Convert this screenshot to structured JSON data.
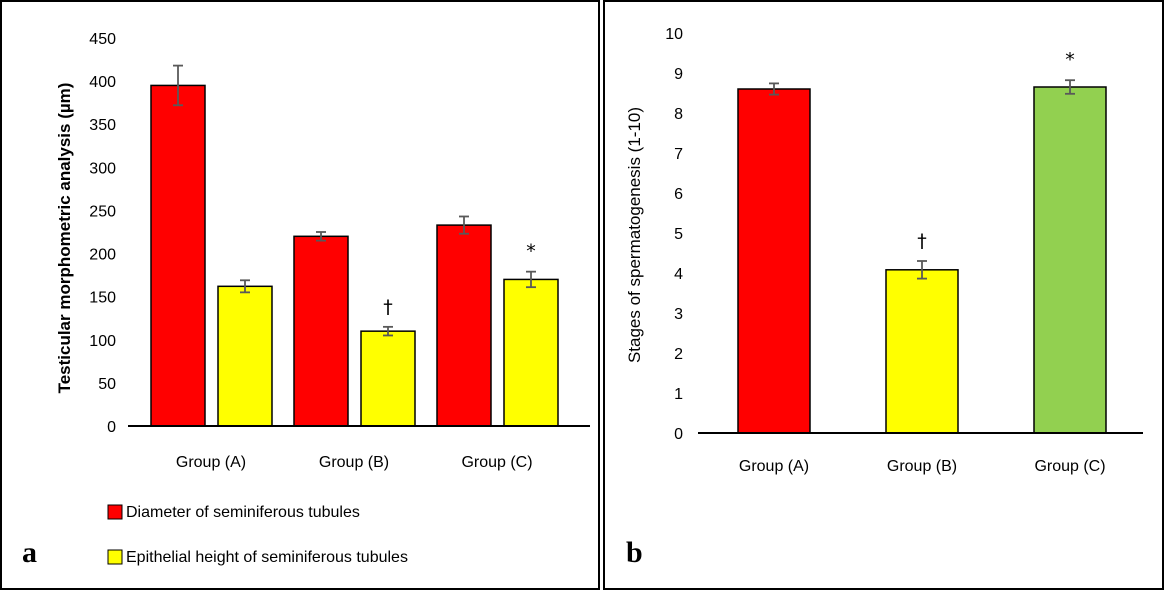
{
  "chart_data": [
    {
      "panel": "a",
      "type": "bar",
      "categories": [
        "Group (A)",
        "Group (B)",
        "Group (C)"
      ],
      "ylabel": "Testicular morphometric analysis (µm)",
      "ylim": [
        0,
        450
      ],
      "yticks": [
        0,
        50,
        100,
        150,
        200,
        250,
        300,
        350,
        400,
        450
      ],
      "grid": false,
      "legend_position": "bottom-left",
      "series": [
        {
          "name": "Diameter of seminiferous tubules",
          "color": "#ff0000",
          "values": [
            395,
            220,
            233
          ],
          "errors": [
            23,
            5,
            10
          ],
          "annotations": [
            "",
            "",
            ""
          ]
        },
        {
          "name": "Epithelial height of seminiferous tubules",
          "color": "#ffff00",
          "values": [
            162,
            110,
            170
          ],
          "errors": [
            7,
            5,
            9
          ],
          "annotations": [
            "",
            "†",
            "*"
          ]
        }
      ]
    },
    {
      "panel": "b",
      "type": "bar",
      "categories": [
        "Group (A)",
        "Group (B)",
        "Group (C)"
      ],
      "ylabel": "Stages of spermatogenesis (1-10)",
      "ylim": [
        0,
        10
      ],
      "yticks": [
        0,
        1,
        2,
        3,
        4,
        5,
        6,
        7,
        8,
        9,
        10
      ],
      "grid": false,
      "values": [
        8.6,
        4.08,
        8.65
      ],
      "errors": [
        0.14,
        0.22,
        0.17
      ],
      "colors": [
        "#ff0000",
        "#ffff00",
        "#92d050"
      ],
      "annotations": [
        "",
        "†",
        "*"
      ]
    }
  ]
}
